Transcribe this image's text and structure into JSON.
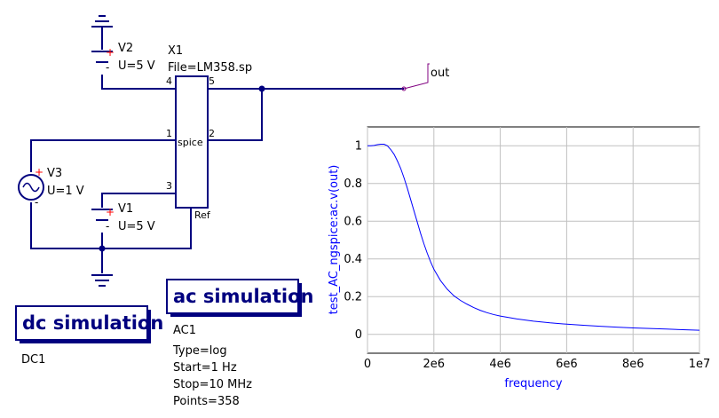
{
  "schematic": {
    "x1": {
      "name": "X1",
      "file": "File=LM358.sp",
      "body": "spice",
      "ref_pin": "Ref",
      "pins": [
        "1",
        "2",
        "3",
        "4",
        "5"
      ]
    },
    "v2": {
      "name": "V2",
      "value": "U=5 V"
    },
    "v3": {
      "name": "V3",
      "value": "U=1 V"
    },
    "v1": {
      "name": "V1",
      "value": "U=5 V"
    },
    "out_label": "out",
    "polarity_plus": "+",
    "polarity_minus": "-"
  },
  "simulations": [
    {
      "title": "dc simulation",
      "name": "DC1",
      "params": []
    },
    {
      "title": "ac simulation",
      "name": "AC1",
      "params": [
        "Type=log",
        "Start=1 Hz",
        "Stop=10 MHz",
        "Points=358"
      ]
    }
  ],
  "colors": {
    "wire": "#00007f",
    "curve": "#0000ff",
    "grid": "#c0c0c0",
    "plus": "#ff0000"
  },
  "chart_data": {
    "type": "line",
    "xlabel": "frequency",
    "ylabel": "test_AC_ngspice:ac.v(out)",
    "xlim": [
      0,
      10000000
    ],
    "ylim": [
      -0.1,
      1.1
    ],
    "xticks": [
      0,
      2000000,
      4000000,
      6000000,
      8000000,
      10000000
    ],
    "xtick_labels": [
      "0",
      "2e6",
      "4e6",
      "6e6",
      "8e6",
      "1e7"
    ],
    "yticks": [
      0,
      0.2,
      0.4,
      0.6,
      0.8,
      1
    ],
    "ytick_labels": [
      "0",
      "0.2",
      "0.4",
      "0.6",
      "0.8",
      "1"
    ],
    "grid": true,
    "series": [
      {
        "color": "#0000ff",
        "x": [
          1,
          100000,
          200000,
          300000,
          400000,
          500000,
          600000,
          700000,
          800000,
          900000,
          1000000,
          1100000,
          1200000,
          1300000,
          1400000,
          1500000,
          1600000,
          1700000,
          1800000,
          1900000,
          2000000,
          2200000,
          2400000,
          2600000,
          2800000,
          3000000,
          3200000,
          3400000,
          3600000,
          3800000,
          4000000,
          4500000,
          5000000,
          5500000,
          6000000,
          6500000,
          7000000,
          7500000,
          8000000,
          8500000,
          9000000,
          9500000,
          10000000
        ],
        "y": [
          1.0,
          1.0,
          1.002,
          1.006,
          1.008,
          1.008,
          1.0,
          0.98,
          0.955,
          0.92,
          0.88,
          0.83,
          0.775,
          0.715,
          0.655,
          0.595,
          0.535,
          0.48,
          0.43,
          0.385,
          0.345,
          0.285,
          0.24,
          0.205,
          0.18,
          0.16,
          0.142,
          0.127,
          0.115,
          0.105,
          0.097,
          0.082,
          0.07,
          0.061,
          0.054,
          0.048,
          0.043,
          0.038,
          0.034,
          0.031,
          0.028,
          0.025,
          0.022
        ]
      }
    ]
  }
}
